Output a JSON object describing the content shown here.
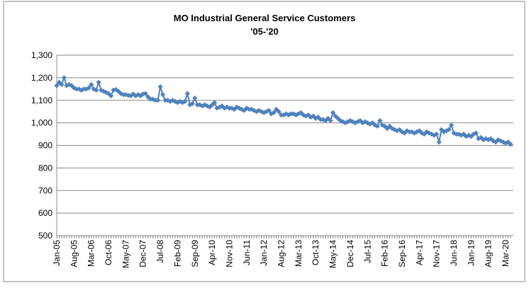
{
  "chart_data": {
    "type": "line",
    "title": "MO Industrial General Service Customers",
    "subtitle": "'05-'20",
    "color": "#4f81bd",
    "marker": "diamond",
    "grid": true,
    "ylim": [
      500,
      1300
    ],
    "yticks": [
      500,
      600,
      700,
      800,
      900,
      {
        "value": 1000,
        "label": "1,000"
      },
      {
        "value": 1100,
        "label": "1,100"
      },
      {
        "value": 1200,
        "label": "1,200"
      },
      {
        "value": 1300,
        "label": "1,300"
      }
    ],
    "categories": [
      "Jan-05",
      null,
      null,
      null,
      null,
      null,
      null,
      "Aug-05",
      null,
      null,
      null,
      null,
      null,
      null,
      "Mar-06",
      null,
      null,
      null,
      null,
      null,
      null,
      "Oct-06",
      null,
      null,
      null,
      null,
      null,
      null,
      "May-07",
      null,
      null,
      null,
      null,
      null,
      null,
      "Dec-07",
      null,
      null,
      null,
      null,
      null,
      null,
      "Jul-08",
      null,
      null,
      null,
      null,
      null,
      null,
      "Feb-09",
      null,
      null,
      null,
      null,
      null,
      null,
      "Sep-09",
      null,
      null,
      null,
      null,
      null,
      null,
      "Apr-10",
      null,
      null,
      null,
      null,
      null,
      null,
      "Nov-10",
      null,
      null,
      null,
      null,
      null,
      null,
      "Jun-11",
      null,
      null,
      null,
      null,
      null,
      null,
      "Jan-12",
      null,
      null,
      null,
      null,
      null,
      null,
      "Aug-12",
      null,
      null,
      null,
      null,
      null,
      null,
      "Mar-13",
      null,
      null,
      null,
      null,
      null,
      null,
      "Oct-13",
      null,
      null,
      null,
      null,
      null,
      null,
      "May-14",
      null,
      null,
      null,
      null,
      null,
      null,
      "Dec-14",
      null,
      null,
      null,
      null,
      null,
      null,
      "Jul-15",
      null,
      null,
      null,
      null,
      null,
      null,
      "Feb-16",
      null,
      null,
      null,
      null,
      null,
      null,
      "Sep-16",
      null,
      null,
      null,
      null,
      null,
      null,
      "Apr-17",
      null,
      null,
      null,
      null,
      null,
      null,
      "Nov-17",
      null,
      null,
      null,
      null,
      null,
      null,
      "Jun-18",
      null,
      null,
      null,
      null,
      null,
      null,
      "Jan-19",
      null,
      null,
      null,
      null,
      null,
      null,
      "Aug-19",
      null,
      null,
      null,
      null,
      null,
      null,
      "Mar-20",
      null,
      null
    ],
    "values": [
      1165,
      1180,
      1170,
      1200,
      1165,
      1170,
      1165,
      1155,
      1150,
      1150,
      1145,
      1150,
      1150,
      1155,
      1170,
      1150,
      1145,
      1180,
      1145,
      1140,
      1135,
      1130,
      1120,
      1145,
      1148,
      1140,
      1130,
      1125,
      1125,
      1122,
      1120,
      1128,
      1120,
      1125,
      1120,
      1128,
      1130,
      1115,
      1105,
      1105,
      1100,
      1100,
      1160,
      1125,
      1100,
      1100,
      1095,
      1100,
      1095,
      1090,
      1095,
      1090,
      1095,
      1130,
      1080,
      1085,
      1110,
      1080,
      1080,
      1075,
      1080,
      1075,
      1070,
      1080,
      1090,
      1065,
      1070,
      1075,
      1065,
      1070,
      1065,
      1065,
      1060,
      1070,
      1065,
      1060,
      1055,
      1065,
      1060,
      1060,
      1055,
      1050,
      1055,
      1050,
      1045,
      1050,
      1055,
      1040,
      1045,
      1060,
      1050,
      1035,
      1035,
      1040,
      1035,
      1040,
      1040,
      1035,
      1040,
      1045,
      1035,
      1030,
      1035,
      1025,
      1030,
      1020,
      1025,
      1015,
      1015,
      1010,
      1020,
      1010,
      1045,
      1030,
      1020,
      1010,
      1005,
      1000,
      1005,
      1010,
      1005,
      1000,
      1005,
      1010,
      1000,
      1005,
      1000,
      995,
      1000,
      990,
      985,
      1010,
      990,
      985,
      975,
      985,
      975,
      970,
      965,
      970,
      960,
      955,
      965,
      960,
      960,
      955,
      960,
      965,
      955,
      950,
      960,
      955,
      950,
      945,
      950,
      915,
      970,
      960,
      965,
      970,
      990,
      955,
      950,
      950,
      945,
      950,
      940,
      945,
      940,
      950,
      955,
      930,
      935,
      925,
      930,
      925,
      930,
      920,
      915,
      925,
      920,
      915,
      910,
      915,
      905
    ]
  }
}
